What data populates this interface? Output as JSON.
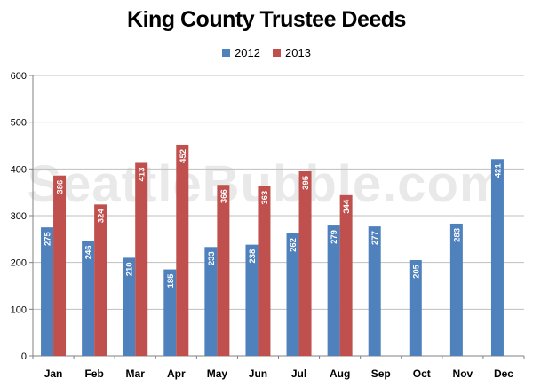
{
  "chart_data": {
    "type": "bar",
    "title": "King County Trustee Deeds",
    "categories": [
      "Jan",
      "Feb",
      "Mar",
      "Apr",
      "May",
      "Jun",
      "Jul",
      "Aug",
      "Sep",
      "Oct",
      "Nov",
      "Dec"
    ],
    "series": [
      {
        "name": "2012",
        "color": "#4f81bd",
        "values": [
          275,
          246,
          210,
          185,
          233,
          238,
          262,
          279,
          277,
          205,
          283,
          421
        ]
      },
      {
        "name": "2013",
        "color": "#c0504d",
        "values": [
          386,
          324,
          413,
          452,
          366,
          363,
          395,
          344,
          null,
          null,
          null,
          null
        ]
      }
    ],
    "ylim": [
      0,
      600
    ],
    "yticks": [
      0,
      100,
      200,
      300,
      400,
      500,
      600
    ],
    "grid": true,
    "legend": "top-center",
    "xlabel": "",
    "ylabel": ""
  },
  "watermark": "SeattleBubble.com"
}
